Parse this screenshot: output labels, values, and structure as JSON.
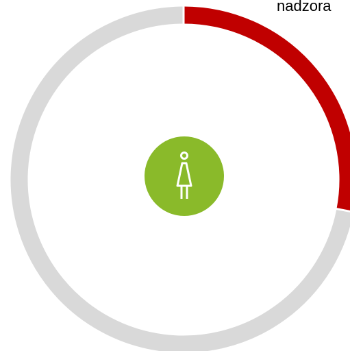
{
  "chart_data": {
    "type": "donut",
    "annotation": "nadzora",
    "categories": [
      null,
      null
    ],
    "values": [
      28,
      72
    ],
    "colors": [
      "#c00000",
      "#d9d9d9"
    ],
    "center_color": "#8aba2a"
  }
}
